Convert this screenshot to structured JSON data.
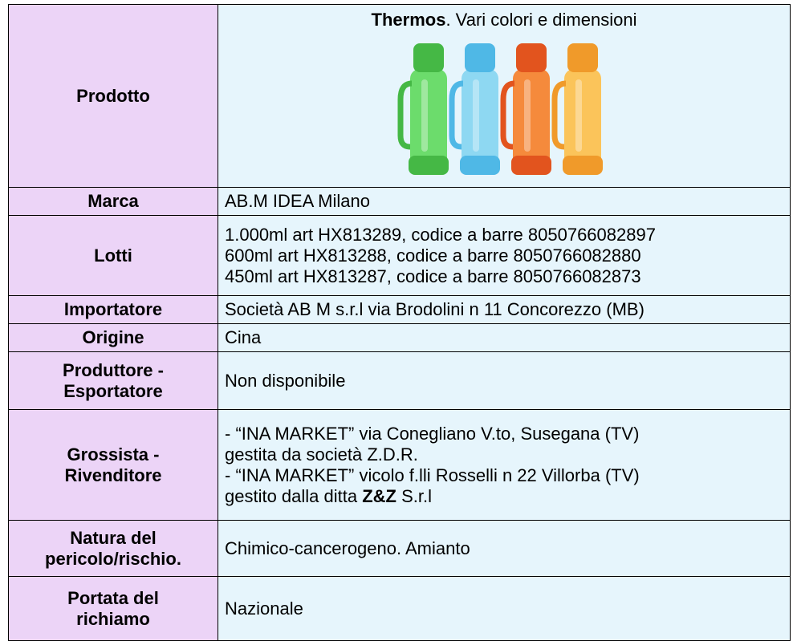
{
  "rows": [
    {
      "label": [
        "Prodotto"
      ],
      "value": [
        [
          {
            "text": "Thermos",
            "bold": true
          },
          {
            "text": ". Vari colori e dimensioni"
          }
        ]
      ]
    },
    {
      "label": [
        "Marca"
      ],
      "value": [
        [
          {
            "text": "AB.M IDEA Milano"
          }
        ]
      ]
    },
    {
      "label": [
        "Lotti"
      ],
      "value": [
        [
          {
            "text": "1.000ml art HX813289, codice a barre 8050766082897"
          }
        ],
        [
          {
            "text": "600ml art HX813288, codice a barre 8050766082880"
          }
        ],
        [
          {
            "text": "450ml art HX813287, codice a barre 8050766082873"
          }
        ]
      ]
    },
    {
      "label": [
        "Importatore"
      ],
      "value": [
        [
          {
            "text": "Società AB M s.r.l via Brodolini n 11 Concorezzo (MB)"
          }
        ]
      ]
    },
    {
      "label": [
        "Origine"
      ],
      "value": [
        [
          {
            "text": "Cina"
          }
        ]
      ]
    },
    {
      "label": [
        "Produttore -",
        "Esportatore"
      ],
      "value": [
        [
          {
            "text": "Non disponibile"
          }
        ]
      ]
    },
    {
      "label": [
        "Grossista -",
        "Rivenditore"
      ],
      "value": [
        [
          {
            "text": "- “INA MARKET” via Conegliano V.to, Susegana (TV)"
          }
        ],
        [
          {
            "text": "gestita da società Z.D.R."
          }
        ],
        [
          {
            "text": "- “INA MARKET” vicolo f.lli Rosselli n 22 Villorba (TV)"
          }
        ],
        [
          {
            "text": "gestito dalla ditta "
          },
          {
            "text": "Z&Z",
            "bold": true
          },
          {
            "text": " S.r.l"
          }
        ]
      ]
    },
    {
      "label": [
        "Natura del",
        "pericolo/rischio."
      ],
      "value": [
        [
          {
            "text": "Chimico-cancerogeno. Amianto"
          }
        ]
      ]
    },
    {
      "label": [
        "Portata del",
        "richiamo"
      ],
      "value": [
        [
          {
            "text": "Nazionale"
          }
        ]
      ]
    }
  ]
}
